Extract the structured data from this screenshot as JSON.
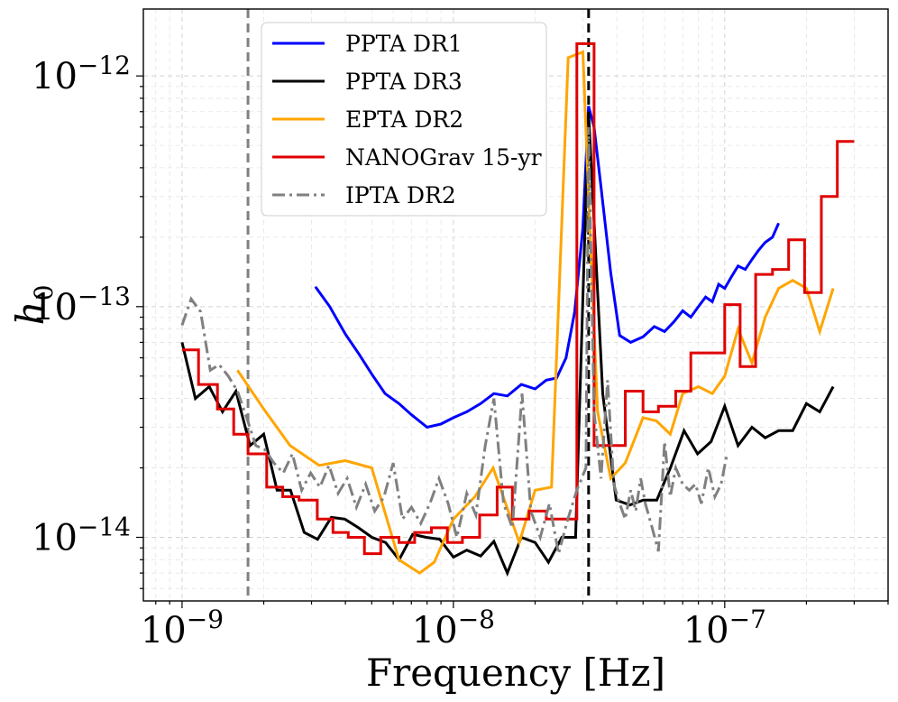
{
  "chart_data": {
    "type": "line",
    "title": "",
    "xlabel": "Frequency [Hz]",
    "ylabel_base": "h",
    "ylabel_sub": "0",
    "xscale": "log",
    "yscale": "log",
    "xlim": [
      7.2e-10,
      4e-07
    ],
    "ylim": [
      5.3e-15,
      1.95e-12
    ],
    "grid": true,
    "legend_location": "upper-left",
    "x_ticks": [
      {
        "value": 1e-09,
        "base": "10",
        "exp": "−9"
      },
      {
        "value": 1e-08,
        "base": "10",
        "exp": "−8"
      },
      {
        "value": 1e-07,
        "base": "10",
        "exp": "−7"
      }
    ],
    "y_ticks": [
      {
        "value": 1e-14,
        "base": "10",
        "exp": "−14"
      },
      {
        "value": 1e-13,
        "base": "10",
        "exp": "−13"
      },
      {
        "value": 1e-12,
        "base": "10",
        "exp": "−12"
      }
    ],
    "vlines": [
      {
        "name": "vline-gray",
        "x": 1.75e-09,
        "color": "#808080",
        "dash": "dashed"
      },
      {
        "name": "vline-black",
        "x": 3.15e-08,
        "color": "#000000",
        "dash": "dashed"
      }
    ],
    "series": [
      {
        "name": "PPTA DR1",
        "color": "#0000ff",
        "style": "line",
        "x": [
          3.1e-09,
          3.5e-09,
          4e-09,
          4.5e-09,
          5e-09,
          5.6e-09,
          6.3e-09,
          7e-09,
          8e-09,
          9e-09,
          1e-08,
          1.12e-08,
          1.26e-08,
          1.41e-08,
          1.58e-08,
          1.78e-08,
          2e-08,
          2.2e-08,
          2.4e-08,
          2.6e-08,
          2.8e-08,
          3e-08,
          3.15e-08,
          3.3e-08,
          3.5e-08,
          3.8e-08,
          4.1e-08,
          4.5e-08,
          5e-08,
          5.5e-08,
          6e-08,
          6.5e-08,
          7e-08,
          7.5e-08,
          8e-08,
          8.5e-08,
          9e-08,
          9.5e-08,
          1e-07,
          1.06e-07,
          1.12e-07,
          1.19e-07,
          1.26e-07,
          1.33e-07,
          1.41e-07,
          1.5e-07,
          1.58e-07
        ],
        "y": [
          1.22e-13,
          1e-13,
          7.6e-14,
          6.2e-14,
          5.1e-14,
          4.2e-14,
          3.8e-14,
          3.4e-14,
          3e-14,
          3.1e-14,
          3.3e-14,
          3.5e-14,
          3.8e-14,
          4.2e-14,
          4.1e-14,
          4.6e-14,
          4.4e-14,
          4.8e-14,
          4.9e-14,
          6e-14,
          9.5e-14,
          2.2e-13,
          7.4e-13,
          6e-13,
          3.3e-13,
          1.4e-13,
          7.5e-14,
          7e-14,
          7.4e-14,
          8.2e-14,
          7.8e-14,
          8.6e-14,
          9.6e-14,
          9e-14,
          1e-13,
          1.1e-13,
          1.05e-13,
          1.25e-13,
          1.2e-13,
          1.35e-13,
          1.5e-13,
          1.45e-13,
          1.6e-13,
          1.75e-13,
          1.9e-13,
          2e-13,
          2.3e-13
        ]
      },
      {
        "name": "PPTA DR3",
        "color": "#000000",
        "style": "line",
        "x": [
          1e-09,
          1.12e-09,
          1.26e-09,
          1.41e-09,
          1.58e-09,
          1.78e-09,
          2e-09,
          2.24e-09,
          2.51e-09,
          2.82e-09,
          3.16e-09,
          3.55e-09,
          3.98e-09,
          4.47e-09,
          5.01e-09,
          5.62e-09,
          6.31e-09,
          7.08e-09,
          7.94e-09,
          8.91e-09,
          1e-08,
          1.12e-08,
          1.26e-08,
          1.41e-08,
          1.58e-08,
          1.78e-08,
          2e-08,
          2.24e-08,
          2.51e-08,
          2.82e-08,
          3.15e-08,
          3.55e-08,
          3.98e-08,
          4.47e-08,
          5.01e-08,
          5.62e-08,
          6.31e-08,
          7.08e-08,
          7.94e-08,
          8.91e-08,
          1e-07,
          1.12e-07,
          1.26e-07,
          1.41e-07,
          1.58e-07,
          1.78e-07,
          2e-07,
          2.24e-07,
          2.51e-07
        ],
        "y": [
          7e-14,
          4e-14,
          4.5e-14,
          3.5e-14,
          4.3e-14,
          2.5e-14,
          2.8e-14,
          1.6e-14,
          1.6e-14,
          1.05e-14,
          9.8e-15,
          1.22e-14,
          1.2e-14,
          1.1e-14,
          1e-14,
          9.5e-15,
          8e-15,
          1.03e-14,
          1e-14,
          9.8e-15,
          8.2e-15,
          8.8e-15,
          8.3e-15,
          9.6e-15,
          7e-15,
          1e-14,
          9.5e-15,
          7.8e-15,
          1e-14,
          1e-14,
          7e-13,
          4.2e-14,
          1.45e-14,
          1.38e-14,
          1.45e-14,
          1.45e-14,
          2e-14,
          2.9e-14,
          2.3e-14,
          2.6e-14,
          3.7e-14,
          2.5e-14,
          3e-14,
          2.7e-14,
          2.9e-14,
          2.9e-14,
          3.8e-14,
          3.5e-14,
          4.5e-14
        ]
      },
      {
        "name": "EPTA DR2",
        "color": "#ffa500",
        "style": "line",
        "x": [
          1.6e-09,
          2e-09,
          2.5e-09,
          3.2e-09,
          4e-09,
          5e-09,
          6.3e-09,
          7.5e-09,
          8.5e-09,
          1e-08,
          1.2e-08,
          1.4e-08,
          1.75e-08,
          2e-08,
          2.3e-08,
          2.65e-08,
          3e-08,
          3.15e-08,
          3.4e-08,
          3.8e-08,
          4.3e-08,
          5e-08,
          5.6e-08,
          6.3e-08,
          7e-08,
          8e-08,
          9e-08,
          1e-07,
          1.12e-07,
          1.26e-07,
          1.41e-07,
          1.58e-07,
          1.78e-07,
          2e-07,
          2.24e-07,
          2.51e-07
        ],
        "y": [
          5.3e-14,
          3.6e-14,
          2.5e-14,
          2.05e-14,
          2.15e-14,
          2e-14,
          8e-15,
          7e-15,
          7.8e-15,
          1.2e-14,
          1.5e-14,
          2e-14,
          9.5e-15,
          1.6e-14,
          1.65e-14,
          1.2e-12,
          1.27e-12,
          3e-13,
          3.5e-14,
          1.8e-14,
          2.1e-14,
          3.3e-14,
          3.2e-14,
          2.8e-14,
          4.2e-14,
          4.5e-14,
          4.2e-14,
          5e-14,
          8e-14,
          5.7e-14,
          9e-14,
          1.2e-13,
          1.3e-13,
          1.2e-13,
          7.8e-14,
          1.2e-13
        ]
      },
      {
        "name": "NANOGrav 15-yr",
        "color": "#e00000",
        "style": "step",
        "edges": [
          1e-09,
          1.15e-09,
          1.35e-09,
          1.55e-09,
          1.75e-09,
          2.05e-09,
          2.35e-09,
          2.7e-09,
          3.15e-09,
          3.6e-09,
          4.1e-09,
          4.7e-09,
          5.4e-09,
          6.3e-09,
          7.2e-09,
          8.3e-09,
          9.5e-09,
          1.08e-08,
          1.25e-08,
          1.45e-08,
          1.65e-08,
          1.9e-08,
          2.2e-08,
          2.5e-08,
          2.85e-08,
          3.3e-08,
          3.75e-08,
          4.3e-08,
          5e-08,
          5.7e-08,
          6.6e-08,
          7.5e-08,
          8.6e-08,
          1e-07,
          1.14e-07,
          1.3e-07,
          1.5e-07,
          1.72e-07,
          1.97e-07,
          2.27e-07,
          2.6e-07,
          3e-07
        ],
        "y": [
          6.5e-14,
          4.6e-14,
          3.6e-14,
          2.8e-14,
          2.3e-14,
          1.65e-14,
          1.5e-14,
          1.45e-14,
          1.2e-14,
          1.05e-14,
          1e-14,
          8.5e-15,
          1e-14,
          9.5e-15,
          1.05e-14,
          1.1e-14,
          9.5e-15,
          1e-14,
          1.25e-14,
          1.65e-14,
          1.2e-14,
          1.3e-14,
          1.2e-14,
          1.2e-14,
          1.38e-12,
          2.5e-14,
          2.5e-14,
          4.3e-14,
          3.5e-14,
          3.7e-14,
          4.3e-14,
          6.3e-14,
          6.3e-14,
          1.02e-13,
          5.5e-14,
          1.38e-13,
          1.45e-13,
          1.95e-13,
          1.15e-13,
          3e-13,
          5.2e-13
        ]
      },
      {
        "name": "IPTA DR2",
        "color": "#808080",
        "style": "dashdot",
        "x": [
          1e-09,
          1.08e-09,
          1.17e-09,
          1.27e-09,
          1.37e-09,
          1.48e-09,
          1.6e-09,
          1.73e-09,
          1.87e-09,
          2.02e-09,
          2.18e-09,
          2.36e-09,
          2.55e-09,
          2.76e-09,
          2.98e-09,
          3.22e-09,
          3.48e-09,
          3.76e-09,
          4.06e-09,
          4.39e-09,
          4.75e-09,
          5.13e-09,
          5.55e-09,
          6e-09,
          6.49e-09,
          7.01e-09,
          7.58e-09,
          8.19e-09,
          8.85e-09,
          9.57e-09,
          1.03e-08,
          1.12e-08,
          1.21e-08,
          1.31e-08,
          1.41e-08,
          1.53e-08,
          1.65e-08,
          1.79e-08,
          1.93e-08,
          2.09e-08,
          2.26e-08,
          2.44e-08,
          2.64e-08,
          2.85e-08,
          3.08e-08,
          3.15e-08,
          3.3e-08,
          3.5e-08,
          3.7e-08,
          3.9e-08,
          4.1e-08,
          4.3e-08,
          4.5e-08,
          4.7e-08,
          4.9e-08,
          5.1e-08,
          5.4e-08,
          5.7e-08,
          6e-08,
          6.3e-08,
          6.6e-08,
          7e-08,
          7.4e-08,
          7.8e-08,
          8.2e-08,
          8.7e-08,
          9.2e-08,
          9.7e-08,
          1.02e-07
        ],
        "y": [
          8.3e-14,
          1.08e-13,
          9.5e-14,
          5.3e-14,
          5.6e-14,
          5e-14,
          4.3e-14,
          3.3e-14,
          2.5e-14,
          2.4e-14,
          2.1e-14,
          1.9e-14,
          2.3e-14,
          1.6e-14,
          1.9e-14,
          1.65e-14,
          2.05e-14,
          1.55e-14,
          1.8e-14,
          1.35e-14,
          1.7e-14,
          1.3e-14,
          1.5e-14,
          2.1e-14,
          1.2e-14,
          1.35e-14,
          1.15e-14,
          1.4e-14,
          1.8e-14,
          1.4e-14,
          1e-14,
          1.55e-14,
          1.25e-14,
          2.5e-14,
          4e-14,
          1.4e-14,
          1.1e-14,
          4.2e-14,
          1.3e-14,
          1e-14,
          1.4e-14,
          8.5e-15,
          1.2e-14,
          1.6e-14,
          2e-14,
          6e-13,
          3.5e-14,
          1.8e-14,
          4.8e-14,
          1.7e-14,
          1.4e-14,
          1.2e-14,
          1.6e-14,
          1.3e-14,
          1.8e-14,
          1.4e-14,
          1.1e-14,
          8.7e-15,
          2.6e-14,
          1.5e-14,
          2e-14,
          1.7e-14,
          1.6e-14,
          1.7e-14,
          1.4e-14,
          2e-14,
          1.5e-14,
          1.7e-14,
          2.3e-14
        ]
      }
    ]
  }
}
